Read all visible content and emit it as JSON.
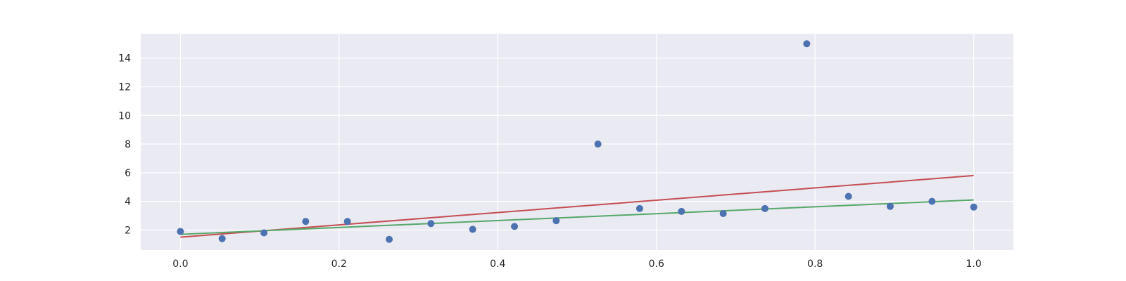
{
  "chart_data": {
    "type": "scatter",
    "title": "",
    "xlabel": "",
    "ylabel": "",
    "xlim": [
      -0.05,
      1.05
    ],
    "ylim": [
      0.6,
      15.7
    ],
    "grid": true,
    "x_ticks": [
      {
        "value": 0.0,
        "label": "0.0"
      },
      {
        "value": 0.2,
        "label": "0.2"
      },
      {
        "value": 0.4,
        "label": "0.4"
      },
      {
        "value": 0.6,
        "label": "0.6"
      },
      {
        "value": 0.8,
        "label": "0.8"
      },
      {
        "value": 1.0,
        "label": "1.0"
      }
    ],
    "y_ticks": [
      {
        "value": 2,
        "label": "2"
      },
      {
        "value": 4,
        "label": "4"
      },
      {
        "value": 6,
        "label": "6"
      },
      {
        "value": 8,
        "label": "8"
      },
      {
        "value": 10,
        "label": "10"
      },
      {
        "value": 12,
        "label": "12"
      },
      {
        "value": 14,
        "label": "14"
      }
    ],
    "points": {
      "color": "#4c72b0",
      "x": [
        0.0,
        0.0526,
        0.1053,
        0.1579,
        0.2105,
        0.2632,
        0.3158,
        0.3684,
        0.4211,
        0.4737,
        0.5263,
        0.5789,
        0.6316,
        0.6842,
        0.7368,
        0.7895,
        0.8421,
        0.8947,
        0.9474,
        1.0
      ],
      "y": [
        1.9,
        1.4,
        1.8,
        2.6,
        2.6,
        1.35,
        2.45,
        2.05,
        2.25,
        2.65,
        8.0,
        3.5,
        3.3,
        3.15,
        3.5,
        15.0,
        4.35,
        3.65,
        4.0,
        3.6
      ]
    },
    "lines": [
      {
        "color": "#c44e52",
        "x": [
          0.0,
          1.0
        ],
        "y": [
          1.5,
          5.8
        ]
      },
      {
        "color": "#55a868",
        "x": [
          0.0,
          1.0
        ],
        "y": [
          1.7,
          4.1
        ]
      }
    ],
    "colors": {
      "plot_background": "#eaeaf2",
      "grid": "#ffffff",
      "text": "#262626"
    }
  }
}
